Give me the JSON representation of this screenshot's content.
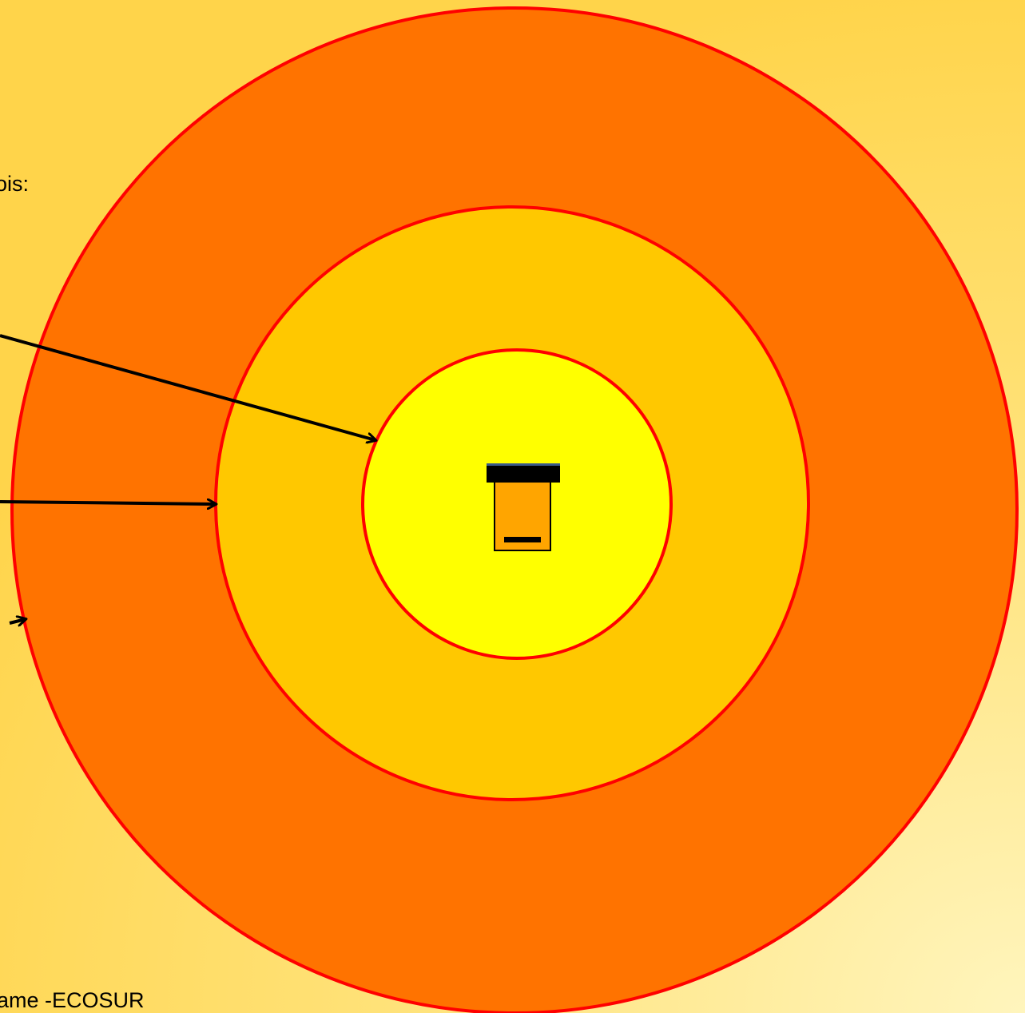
{
  "text_fragments": {
    "top": "ois:",
    "bottom": "ame -ECOSUR"
  },
  "colors": {
    "background_light": "#fff5bd",
    "background_dark": "#ffd44a",
    "outer_ring": "#ff7300",
    "middle_ring": "#ffc800",
    "inner_circle": "#ffff00",
    "ring_border": "#ff0000",
    "hive_body": "#ffa500",
    "hive_roof": "#000000",
    "arrow": "#000000"
  },
  "icons": {
    "hive": "beehive-icon",
    "arrows": "arrow-icon"
  }
}
